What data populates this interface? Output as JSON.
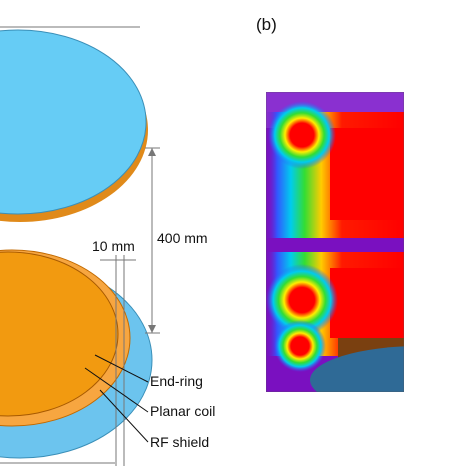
{
  "panel_label": "(b)",
  "dimensions": {
    "gap": "400 mm",
    "width": "10 mm"
  },
  "labels": [
    "End-ring",
    "Planar coil",
    "RF shield"
  ]
}
